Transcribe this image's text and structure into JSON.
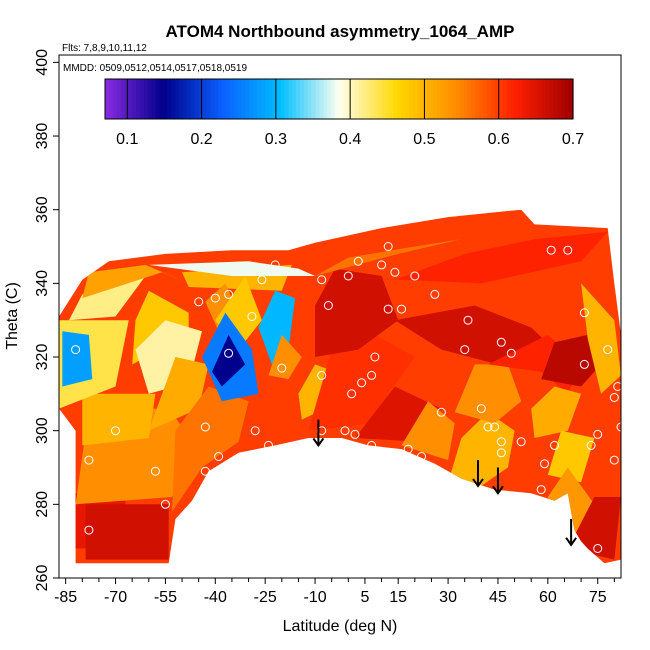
{
  "chart_data": {
    "type": "heatmap",
    "title": "ATOM4 Northbound asymmetry_1064_AMP",
    "flights_note": "Flts: 7,8,9,10,11,12",
    "dates_note": "MMDD: 0509,0512,0514,0517,0518,0519",
    "xlabel": "Latitude (deg N)",
    "ylabel": "Theta (C)",
    "xlim": [
      -87,
      82
    ],
    "ylim": [
      260,
      402
    ],
    "x_ticks": [
      "-85",
      "-70",
      "-55",
      "-40",
      "-25",
      "-10",
      "5",
      "15",
      "30",
      "45",
      "60",
      "75"
    ],
    "x_tick_values": [
      -85,
      -70,
      -55,
      -40,
      -25,
      -10,
      5,
      15,
      30,
      45,
      60,
      75
    ],
    "y_ticks": [
      "260",
      "280",
      "300",
      "320",
      "340",
      "360",
      "380",
      "400"
    ],
    "y_tick_values": [
      260,
      280,
      300,
      320,
      340,
      360,
      380,
      400
    ],
    "colorbar": {
      "ticks": [
        "0.1",
        "0.2",
        "0.3",
        "0.4",
        "0.5",
        "0.6",
        "0.7"
      ],
      "tick_values": [
        0.1,
        0.2,
        0.3,
        0.4,
        0.5,
        0.6,
        0.7
      ],
      "range": [
        0.07,
        0.7
      ],
      "colors": [
        "#8a2be2",
        "#00008b",
        "#0a5fff",
        "#00bfff",
        "#fffff0",
        "#ffd700",
        "#ff8c00",
        "#ff2000",
        "#a00000"
      ]
    },
    "regions": [
      {
        "value": 0.64,
        "points": [
          [
            -83,
            268
          ],
          [
            -67,
            268
          ],
          [
            -67,
            283
          ],
          [
            -83,
            283
          ]
        ]
      },
      {
        "value": 0.66,
        "points": [
          [
            -79,
            265
          ],
          [
            -54,
            265
          ],
          [
            -54,
            280
          ],
          [
            -79,
            280
          ]
        ]
      },
      {
        "value": 0.54,
        "points": [
          [
            -82,
            280
          ],
          [
            -53,
            282
          ],
          [
            -46,
            296
          ],
          [
            -54,
            306
          ],
          [
            -78,
            306
          ]
        ]
      },
      {
        "value": 0.5,
        "points": [
          [
            -80,
            296
          ],
          [
            -60,
            298
          ],
          [
            -58,
            310
          ],
          [
            -80,
            310
          ]
        ]
      },
      {
        "value": 0.44,
        "points": [
          [
            -87,
            306
          ],
          [
            -70,
            312
          ],
          [
            -66,
            330
          ],
          [
            -87,
            330
          ]
        ]
      },
      {
        "value": 0.28,
        "points": [
          [
            -86,
            312
          ],
          [
            -77,
            314
          ],
          [
            -78,
            326
          ],
          [
            -86,
            327
          ]
        ]
      },
      {
        "value": 0.42,
        "points": [
          [
            -84,
            330
          ],
          [
            -70,
            331
          ],
          [
            -61,
            342
          ],
          [
            -80,
            337
          ]
        ]
      },
      {
        "value": 0.52,
        "points": [
          [
            -80,
            336
          ],
          [
            -56,
            343
          ],
          [
            -48,
            340
          ],
          [
            -61,
            345
          ],
          [
            -78,
            343
          ]
        ]
      },
      {
        "value": 0.48,
        "points": [
          [
            -65,
            318
          ],
          [
            -48,
            326
          ],
          [
            -48,
            332
          ],
          [
            -60,
            338
          ],
          [
            -64,
            330
          ]
        ]
      },
      {
        "value": 0.41,
        "points": [
          [
            -60,
            310
          ],
          [
            -48,
            313
          ],
          [
            -44,
            327
          ],
          [
            -55,
            330
          ],
          [
            -64,
            322
          ]
        ]
      },
      {
        "value": 0.51,
        "points": [
          [
            -60,
            300
          ],
          [
            -45,
            306
          ],
          [
            -42,
            318
          ],
          [
            -52,
            320
          ]
        ]
      },
      {
        "value": 0.5,
        "points": [
          [
            -50,
            343
          ],
          [
            -17,
            345
          ],
          [
            -20,
            338
          ],
          [
            -48,
            339
          ]
        ]
      },
      {
        "value": 0.38,
        "points": [
          [
            -60,
            345
          ],
          [
            -30,
            346
          ],
          [
            -15,
            344
          ],
          [
            -10,
            342
          ],
          [
            -35,
            342
          ]
        ]
      },
      {
        "value": 0.56,
        "points": [
          [
            -53,
            278
          ],
          [
            -44,
            290
          ],
          [
            -33,
            297
          ],
          [
            -30,
            308
          ],
          [
            -42,
            312
          ],
          [
            -52,
            300
          ]
        ]
      },
      {
        "value": 0.6,
        "points": [
          [
            -33,
            296
          ],
          [
            -22,
            297
          ],
          [
            -12,
            298
          ],
          [
            -18,
            310
          ],
          [
            -28,
            312
          ]
        ]
      },
      {
        "value": 0.54,
        "points": [
          [
            -43,
            335
          ],
          [
            -37,
            340
          ],
          [
            -33,
            332
          ],
          [
            -38,
            325
          ]
        ]
      },
      {
        "value": 0.48,
        "points": [
          [
            -40,
            330
          ],
          [
            -31,
            342
          ],
          [
            -26,
            330
          ],
          [
            -33,
            322
          ]
        ]
      },
      {
        "value": 0.25,
        "points": [
          [
            -44,
            320
          ],
          [
            -37,
            332
          ],
          [
            -29,
            322
          ],
          [
            -27,
            310
          ],
          [
            -38,
            308
          ]
        ]
      },
      {
        "value": 0.15,
        "points": [
          [
            -41,
            316
          ],
          [
            -36,
            326
          ],
          [
            -31,
            318
          ],
          [
            -38,
            312
          ]
        ]
      },
      {
        "value": 0.3,
        "points": [
          [
            -27,
            328
          ],
          [
            -22,
            338
          ],
          [
            -16,
            336
          ],
          [
            -18,
            322
          ],
          [
            -23,
            318
          ]
        ]
      },
      {
        "value": 0.54,
        "points": [
          [
            -24,
            315
          ],
          [
            -18,
            314
          ],
          [
            -14,
            320
          ],
          [
            -20,
            326
          ]
        ]
      },
      {
        "value": 0.5,
        "points": [
          [
            -14,
            303
          ],
          [
            -7,
            306
          ],
          [
            -4,
            316
          ],
          [
            -10,
            318
          ],
          [
            -15,
            310
          ]
        ]
      },
      {
        "value": 0.61,
        "points": [
          [
            -12,
            300
          ],
          [
            7,
            302
          ],
          [
            12,
            310
          ],
          [
            20,
            320
          ],
          [
            8,
            326
          ],
          [
            -5,
            322
          ]
        ]
      },
      {
        "value": 0.66,
        "points": [
          [
            -10,
            320
          ],
          [
            3,
            322
          ],
          [
            15,
            330
          ],
          [
            10,
            342
          ],
          [
            -4,
            344
          ],
          [
            -10,
            334
          ]
        ]
      },
      {
        "value": 0.62,
        "points": [
          [
            -8,
            342
          ],
          [
            14,
            341
          ],
          [
            35,
            348
          ],
          [
            56,
            352
          ],
          [
            78,
            354
          ],
          [
            70,
            346
          ],
          [
            40,
            340
          ]
        ]
      },
      {
        "value": 0.56,
        "points": [
          [
            -10,
            342
          ],
          [
            15,
            348
          ],
          [
            34,
            352
          ],
          [
            20,
            350
          ],
          [
            0,
            347
          ]
        ]
      },
      {
        "value": 0.66,
        "points": [
          [
            14,
            330
          ],
          [
            38,
            334
          ],
          [
            55,
            328
          ],
          [
            62,
            322
          ],
          [
            45,
            318
          ],
          [
            28,
            322
          ]
        ]
      },
      {
        "value": 0.65,
        "points": [
          [
            2,
            298
          ],
          [
            22,
            297
          ],
          [
            28,
            306
          ],
          [
            14,
            312
          ]
        ]
      },
      {
        "value": 0.54,
        "points": [
          [
            16,
            296
          ],
          [
            30,
            292
          ],
          [
            32,
            302
          ],
          [
            24,
            308
          ]
        ]
      },
      {
        "value": 0.5,
        "points": [
          [
            30,
            286
          ],
          [
            40,
            285
          ],
          [
            48,
            290
          ],
          [
            50,
            300
          ],
          [
            42,
            305
          ],
          [
            34,
            298
          ]
        ]
      },
      {
        "value": 0.54,
        "points": [
          [
            32,
            305
          ],
          [
            44,
            302
          ],
          [
            52,
            308
          ],
          [
            48,
            318
          ],
          [
            38,
            318
          ]
        ]
      },
      {
        "value": 0.62,
        "points": [
          [
            42,
            318
          ],
          [
            58,
            316
          ],
          [
            66,
            310
          ],
          [
            70,
            318
          ],
          [
            60,
            326
          ]
        ]
      },
      {
        "value": 0.68,
        "points": [
          [
            58,
            314
          ],
          [
            70,
            312
          ],
          [
            76,
            318
          ],
          [
            72,
            326
          ],
          [
            62,
            324
          ]
        ]
      },
      {
        "value": 0.5,
        "points": [
          [
            70,
            340
          ],
          [
            80,
            330
          ],
          [
            82,
            315
          ],
          [
            76,
            310
          ],
          [
            72,
            325
          ]
        ]
      },
      {
        "value": 0.51,
        "points": [
          [
            56,
            298
          ],
          [
            66,
            300
          ],
          [
            70,
            310
          ],
          [
            62,
            312
          ],
          [
            55,
            306
          ]
        ]
      },
      {
        "value": 0.48,
        "points": [
          [
            60,
            288
          ],
          [
            70,
            286
          ],
          [
            74,
            298
          ],
          [
            64,
            300
          ]
        ]
      },
      {
        "value": 0.53,
        "points": [
          [
            60,
            282
          ],
          [
            66,
            272
          ],
          [
            70,
            268
          ],
          [
            74,
            280
          ],
          [
            66,
            290
          ]
        ]
      },
      {
        "value": 0.66,
        "points": [
          [
            66,
            268
          ],
          [
            80,
            265
          ],
          [
            82,
            282
          ],
          [
            74,
            282
          ]
        ]
      }
    ],
    "flight_points": [
      [
        -82,
        322
      ],
      [
        -78,
        273
      ],
      [
        -78,
        292
      ],
      [
        -45,
        335
      ],
      [
        -40,
        336
      ],
      [
        -36,
        337
      ],
      [
        -36,
        321
      ],
      [
        -29,
        331
      ],
      [
        -26,
        341
      ],
      [
        -22,
        345
      ],
      [
        -20,
        317
      ],
      [
        -43,
        301
      ],
      [
        -43,
        289
      ],
      [
        -39,
        293
      ],
      [
        -28,
        300
      ],
      [
        -24,
        296
      ],
      [
        -58,
        289
      ],
      [
        -55,
        280
      ],
      [
        -8,
        341
      ],
      [
        -6,
        334
      ],
      [
        0,
        342
      ],
      [
        3,
        346
      ],
      [
        -8,
        315
      ],
      [
        -8,
        300
      ],
      [
        -1,
        300
      ],
      [
        2,
        299
      ],
      [
        1,
        310
      ],
      [
        4,
        313
      ],
      [
        7,
        296
      ],
      [
        7,
        315
      ],
      [
        10,
        345
      ],
      [
        12,
        333
      ],
      [
        14,
        343
      ],
      [
        16,
        333
      ],
      [
        18,
        295
      ],
      [
        20,
        342
      ],
      [
        22,
        293
      ],
      [
        26,
        337
      ],
      [
        28,
        305
      ],
      [
        40,
        306
      ],
      [
        42,
        301
      ],
      [
        44,
        301
      ],
      [
        46,
        294
      ],
      [
        46,
        297
      ],
      [
        46,
        324
      ],
      [
        49,
        321
      ],
      [
        52,
        297
      ],
      [
        58,
        284
      ],
      [
        59,
        291
      ],
      [
        61,
        349
      ],
      [
        62,
        296
      ],
      [
        66,
        349
      ],
      [
        71,
        318
      ],
      [
        71,
        332
      ],
      [
        73,
        296
      ],
      [
        75,
        268
      ],
      [
        75,
        299
      ],
      [
        78,
        322
      ],
      [
        80,
        292
      ],
      [
        80,
        309
      ],
      [
        81,
        312
      ],
      [
        82,
        301
      ],
      [
        35,
        322
      ],
      [
        36,
        330
      ],
      [
        -70,
        300
      ],
      [
        8,
        320
      ],
      [
        12,
        350
      ]
    ],
    "arrows": [
      {
        "x": -9,
        "y_top": 303,
        "y_tip": 296
      },
      {
        "x": 39,
        "y_top": 292,
        "y_tip": 285
      },
      {
        "x": 45,
        "y_top": 290,
        "y_tip": 283
      },
      {
        "x": 67,
        "y_top": 276,
        "y_tip": 269
      }
    ]
  }
}
